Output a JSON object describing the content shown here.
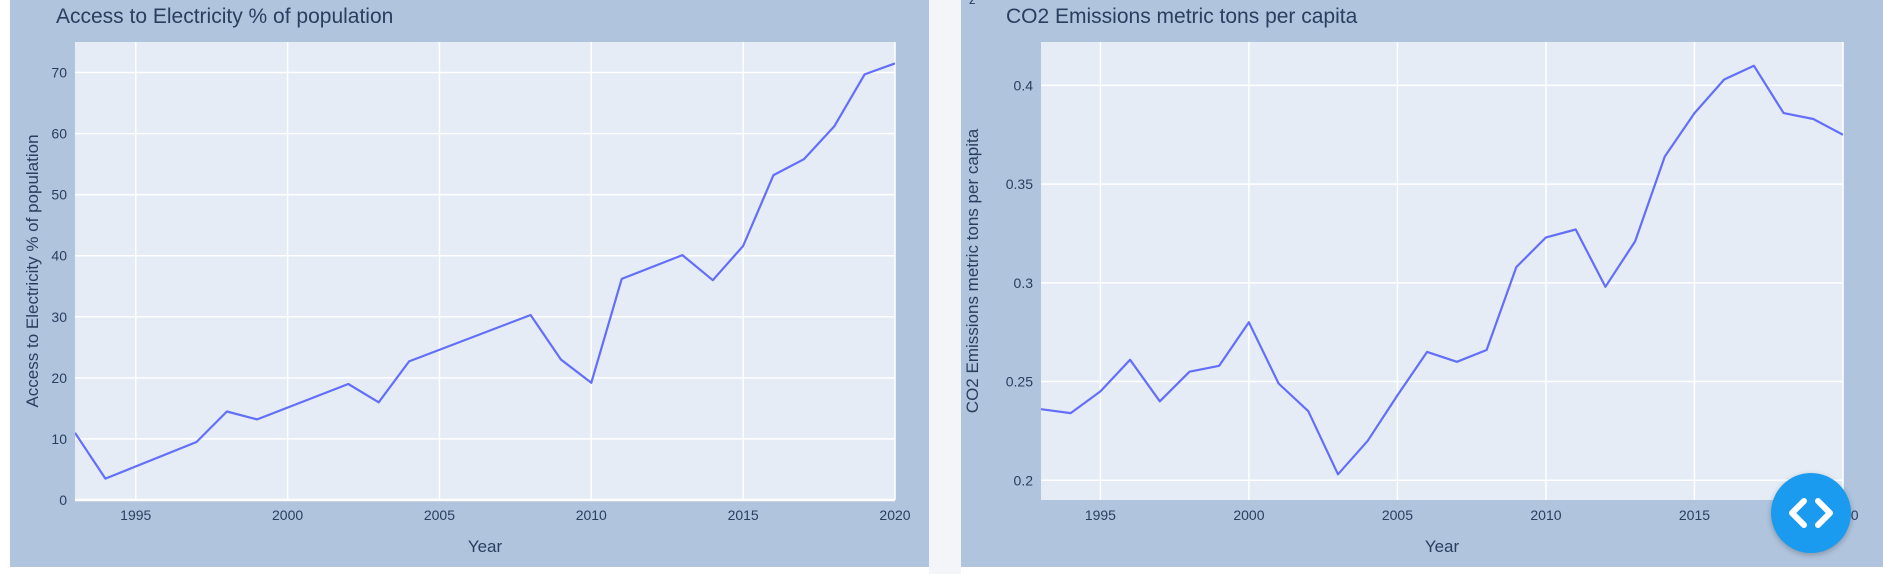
{
  "chart_data": [
    {
      "type": "line",
      "title": "Access to Electricity % of population",
      "xlabel": "Year",
      "ylabel": "Access to Electricity % of population",
      "xlim": [
        1993,
        2020
      ],
      "ylim": [
        0,
        75
      ],
      "xticks": [
        1995,
        2000,
        2005,
        2010,
        2015,
        2020
      ],
      "yticks": [
        0,
        10,
        20,
        30,
        40,
        50,
        60,
        70
      ],
      "grid": true,
      "line_color": "#636efa",
      "series": [
        {
          "x": [
            1993,
            1994,
            1997,
            1998,
            1999,
            2002,
            2003,
            2004,
            2008,
            2009,
            2010,
            2011,
            2013,
            2014,
            2015,
            2016,
            2017,
            2018,
            2019,
            2020
          ],
          "values": [
            11,
            3.5,
            9.5,
            14.5,
            13.2,
            19,
            16,
            22.7,
            30.3,
            23,
            19.2,
            36.2,
            40.1,
            36,
            41.6,
            53.2,
            55.8,
            61.2,
            69.7,
            71.5
          ]
        }
      ]
    },
    {
      "type": "line",
      "title": "CO2 Emissions metric tons per capita",
      "xlabel": "Year",
      "ylabel": "CO2 Emissions metric tons per capita",
      "xlim": [
        1993,
        2020
      ],
      "ylim": [
        0.19,
        0.422
      ],
      "xticks": [
        1995,
        2000,
        2005,
        2010,
        2015,
        2020
      ],
      "yticks": [
        0.2,
        0.25,
        0.3,
        0.35,
        0.4
      ],
      "grid": true,
      "line_color": "#636efa",
      "series": [
        {
          "x": [
            1993,
            1994,
            1995,
            1996,
            1997,
            1998,
            1999,
            2000,
            2001,
            2002,
            2003,
            2004,
            2005,
            2006,
            2007,
            2008,
            2009,
            2010,
            2011,
            2012,
            2013,
            2014,
            2015,
            2016,
            2017,
            2018,
            2019,
            2020
          ],
          "values": [
            0.236,
            0.234,
            0.245,
            0.261,
            0.24,
            0.255,
            0.258,
            0.28,
            0.249,
            0.235,
            0.203,
            0.22,
            0.243,
            0.265,
            0.26,
            0.266,
            0.308,
            0.323,
            0.327,
            0.298,
            0.321,
            0.364,
            0.386,
            0.403,
            0.41,
            0.386,
            0.383,
            0.375
          ]
        }
      ]
    }
  ],
  "stray_mark": "z",
  "fab_icon": "code-brackets-icon"
}
